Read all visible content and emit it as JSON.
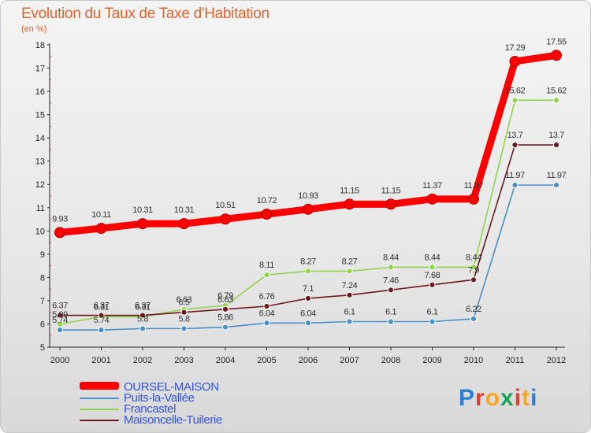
{
  "chart_data": {
    "type": "line",
    "title": "Evolution du Taux de Taxe d'Habitation",
    "subtitle": "(en %)",
    "xlabel": "",
    "ylabel": "",
    "x": [
      "2000",
      "2001",
      "2002",
      "2003",
      "2004",
      "2005",
      "2006",
      "2007",
      "2008",
      "2009",
      "2010",
      "2011",
      "2012"
    ],
    "ylim": [
      5,
      18
    ],
    "yticks": [
      5,
      6,
      7,
      8,
      9,
      10,
      11,
      12,
      13,
      14,
      15,
      16,
      17,
      18
    ],
    "grid": false,
    "legend_position": "bottom-left",
    "series": [
      {
        "name": "OURSEL-MAISON",
        "color": "#ff0000",
        "values": [
          9.93,
          10.11,
          10.31,
          10.31,
          10.51,
          10.72,
          10.93,
          11.15,
          11.15,
          11.37,
          11.37,
          17.29,
          17.55
        ],
        "labels": [
          "9.93",
          "10.11",
          "10.31",
          "10.31",
          "10.51",
          "10.72",
          "10.93",
          "11.15",
          "11.15",
          "11.37",
          "11.37",
          "17.29",
          "17.55"
        ]
      },
      {
        "name": "Puits-la-Vallée",
        "color": "#4a90c8",
        "values": [
          5.74,
          5.74,
          5.8,
          5.8,
          5.86,
          6.04,
          6.04,
          6.1,
          6.1,
          6.1,
          6.22,
          11.97,
          11.97
        ],
        "labels": [
          "5.74",
          "5.74",
          "5.8",
          "5.8",
          "5.86",
          "6.04",
          "6.04",
          "6.1",
          "6.1",
          "6.1",
          "6.22",
          "11.97",
          "11.97"
        ]
      },
      {
        "name": "Francastel",
        "color": "#8fd44a",
        "values": [
          5.99,
          6.31,
          6.31,
          6.63,
          6.79,
          8.11,
          8.27,
          8.27,
          8.44,
          8.44,
          8.44,
          15.62,
          15.62
        ],
        "labels": [
          "5.99",
          "6.31",
          "6.31",
          "6.63",
          "6.79",
          "8.11",
          "8.27",
          "8.27",
          "8.44",
          "8.44",
          "8.44",
          "15.62",
          "15.62"
        ]
      },
      {
        "name": "Maisoncelle-Tuilerie",
        "color": "#6b1b1b",
        "values": [
          6.37,
          6.37,
          6.37,
          6.5,
          6.63,
          6.76,
          7.1,
          7.24,
          7.46,
          7.68,
          7.9,
          13.7,
          13.7
        ],
        "labels": [
          "6.37",
          "6.37",
          "6.37",
          "6.5",
          "6.63",
          "6.76",
          "7.1",
          "7.24",
          "7.46",
          "7.68",
          "7.9",
          "13.7",
          "13.7"
        ]
      }
    ]
  },
  "logo": {
    "letters": [
      "P",
      "r",
      "o",
      "x",
      "i",
      "t",
      "i"
    ],
    "colors": [
      "#2a7fd4",
      "#e63c2b",
      "#f5a623",
      "#1aa35a",
      "#e63c2b",
      "#f5a623",
      "#2a7fd4"
    ]
  }
}
